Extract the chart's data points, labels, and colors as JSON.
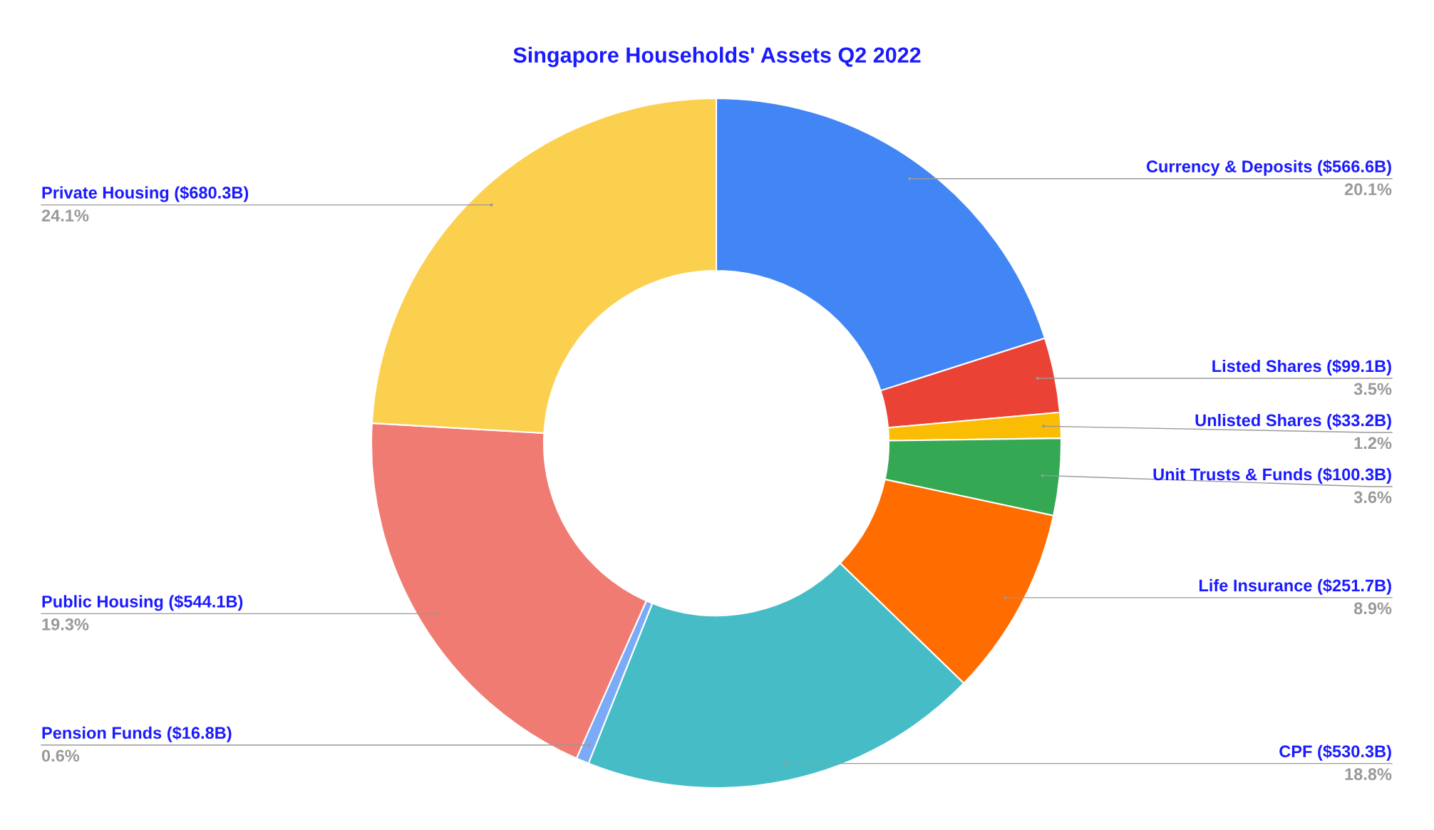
{
  "chart_data": {
    "type": "donut",
    "title": "Singapore Households' Assets Q2 2022",
    "categories": [
      "Currency & Deposits ($566.6B)",
      "Listed Shares ($99.1B)",
      "Unlisted Shares ($33.2B)",
      "Unit Trusts & Funds ($100.3B)",
      "Life Insurance ($251.7B)",
      "CPF ($530.3B)",
      "Pension Funds ($16.8B)",
      "Public Housing ($544.1B)",
      "Private Housing ($680.3B)"
    ],
    "values": [
      20.1,
      3.5,
      1.2,
      3.6,
      8.9,
      18.8,
      0.6,
      19.3,
      24.1
    ],
    "value_labels": [
      "20.1%",
      "3.5%",
      "1.2%",
      "3.6%",
      "8.9%",
      "18.8%",
      "0.6%",
      "19.3%",
      "24.1%"
    ],
    "colors": [
      "#4285f4",
      "#ea4335",
      "#fbbc04",
      "#34a853",
      "#ff6d01",
      "#46bdc6",
      "#7baaf7",
      "#f07b72",
      "#fcd04f"
    ],
    "legend": false
  }
}
